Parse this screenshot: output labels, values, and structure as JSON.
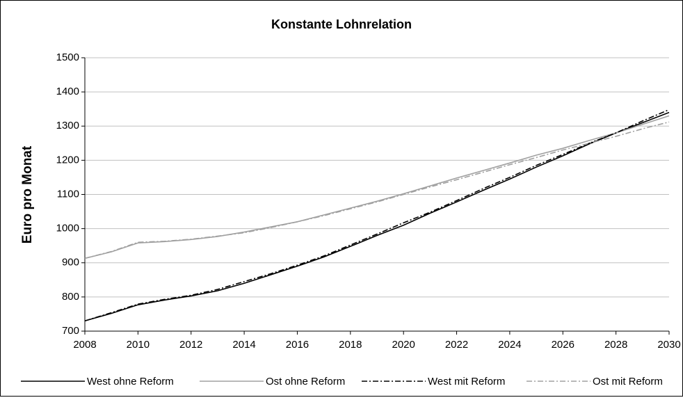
{
  "chart_data": {
    "type": "line",
    "title": "Konstante Lohnrelation",
    "y_label": "Euro pro Monat",
    "x": [
      2008,
      2009,
      2010,
      2011,
      2012,
      2013,
      2014,
      2015,
      2016,
      2017,
      2018,
      2019,
      2020,
      2021,
      2022,
      2023,
      2024,
      2025,
      2026,
      2027,
      2028,
      2029,
      2030
    ],
    "xlim": [
      2008,
      2030
    ],
    "xticks": [
      2008,
      2010,
      2012,
      2014,
      2016,
      2018,
      2020,
      2022,
      2024,
      2026,
      2028,
      2030
    ],
    "ylim": [
      700,
      1500
    ],
    "yticks": [
      700,
      800,
      900,
      1000,
      1100,
      1200,
      1300,
      1400,
      1500
    ],
    "grid": true,
    "legend": "bottom",
    "series": [
      {
        "name": "West ohne Reform",
        "color": "#000000",
        "dash": "solid",
        "values": [
          730,
          752,
          777,
          791,
          803,
          818,
          840,
          865,
          890,
          917,
          948,
          980,
          1010,
          1045,
          1078,
          1112,
          1145,
          1180,
          1213,
          1248,
          1280,
          1310,
          1340
        ]
      },
      {
        "name": "Ost ohne Reform",
        "color": "#a0a0a0",
        "dash": "solid",
        "values": [
          913,
          932,
          958,
          962,
          968,
          977,
          990,
          1005,
          1020,
          1040,
          1060,
          1080,
          1102,
          1125,
          1148,
          1170,
          1192,
          1215,
          1235,
          1258,
          1280,
          1305,
          1330
        ]
      },
      {
        "name": "West mit Reform",
        "color": "#000000",
        "dash": "dash-dot",
        "values": [
          730,
          754,
          779,
          793,
          805,
          822,
          845,
          868,
          893,
          920,
          952,
          984,
          1017,
          1048,
          1082,
          1117,
          1150,
          1185,
          1217,
          1250,
          1280,
          1315,
          1348
        ]
      },
      {
        "name": "Ost mit Reform",
        "color": "#a0a0a0",
        "dash": "dash-dot",
        "values": [
          913,
          933,
          960,
          963,
          969,
          978,
          988,
          1003,
          1020,
          1038,
          1058,
          1078,
          1100,
          1122,
          1143,
          1165,
          1187,
          1208,
          1230,
          1250,
          1270,
          1292,
          1312
        ]
      }
    ]
  }
}
